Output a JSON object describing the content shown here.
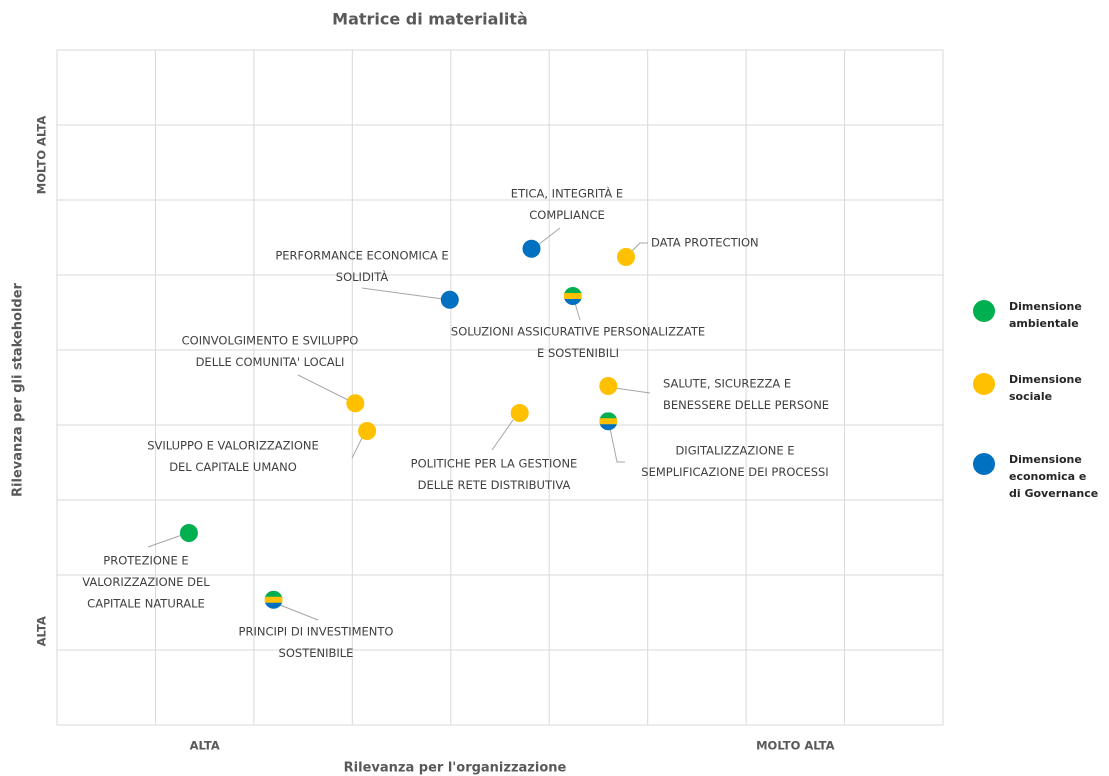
{
  "chart_data": {
    "type": "scatter",
    "title": "Matrice di materialità",
    "x_label": "Rilevanza per l'organizzazione",
    "y_label": "Rilevanza per gli stakeholder",
    "xlim": [
      0,
      9
    ],
    "ylim": [
      0,
      9
    ],
    "xticks": [
      {
        "value": 1.5,
        "label": "ALTA"
      },
      {
        "value": 7.5,
        "label": "MOLTO ALTA"
      }
    ],
    "yticks": [
      {
        "value": 1.25,
        "label": "ALTA"
      },
      {
        "value": 7.6,
        "label": "MOLTO ALTA"
      }
    ],
    "xgrid": [
      1,
      2,
      3,
      4,
      5,
      6,
      7,
      8
    ],
    "ygrid": [
      1,
      2,
      3,
      4,
      5,
      6,
      7,
      8
    ],
    "grid": true,
    "legend_position": "right",
    "legend": [
      {
        "name": "Dimensione ambientale",
        "color": "#00b050"
      },
      {
        "name": "Dimensione sociale",
        "color": "#ffc000"
      },
      {
        "name": "Dimensione economica e di Governance",
        "color": "#0070c0"
      }
    ],
    "points": [
      {
        "label": [
          "ETICA, INTEGRITÀ E",
          "COMPLIANCE"
        ],
        "x": 4.82,
        "y": 6.35,
        "colors": [
          "#0070c0"
        ]
      },
      {
        "label": [
          "DATA PROTECTION"
        ],
        "x": 5.78,
        "y": 6.24,
        "colors": [
          "#ffc000"
        ]
      },
      {
        "label": [
          "PERFORMANCE ECONOMICA E",
          "SOLIDITÀ"
        ],
        "x": 3.99,
        "y": 5.67,
        "colors": [
          "#0070c0"
        ]
      },
      {
        "label": [
          "SOLUZIONI ASSICURATIVE PERSONALIZZATE",
          "E SOSTENIBILI"
        ],
        "x": 5.24,
        "y": 5.72,
        "colors": [
          "#00b050",
          "#ffc000",
          "#0070c0"
        ]
      },
      {
        "label": [
          "COINVOLGIMENTO E SVILUPPO",
          "DELLE COMUNITA' LOCALI"
        ],
        "x": 3.03,
        "y": 4.29,
        "colors": [
          "#ffc000"
        ]
      },
      {
        "label": [
          "SVILUPPO E VALORIZZAZIONE",
          "DEL CAPITALE UMANO"
        ],
        "x": 3.15,
        "y": 3.92,
        "colors": [
          "#ffc000"
        ]
      },
      {
        "label": [
          "POLITICHE PER LA GESTIONE",
          "DELLE RETE DISTRIBUTIVA"
        ],
        "x": 4.7,
        "y": 4.16,
        "colors": [
          "#ffc000"
        ]
      },
      {
        "label": [
          "SALUTE, SICUREZZA E",
          "BENESSERE DELLE PERSONE"
        ],
        "x": 5.6,
        "y": 4.52,
        "colors": [
          "#ffc000"
        ]
      },
      {
        "label": [
          "DIGITALIZZAZIONE E",
          "SEMPLIFICAZIONE DEI PROCESSI"
        ],
        "x": 5.6,
        "y": 4.05,
        "colors": [
          "#00b050",
          "#ffc000",
          "#0070c0"
        ]
      },
      {
        "label": [
          "PROTEZIONE E",
          "VALORIZZAZIONE DEL",
          "CAPITALE NATURALE"
        ],
        "x": 1.34,
        "y": 2.56,
        "colors": [
          "#00b050"
        ]
      },
      {
        "label": [
          "PRINCIPI DI INVESTIMENTO",
          "SOSTENIBILE"
        ],
        "x": 2.2,
        "y": 1.67,
        "colors": [
          "#00b050",
          "#ffc000",
          "#0070c0"
        ]
      }
    ]
  }
}
